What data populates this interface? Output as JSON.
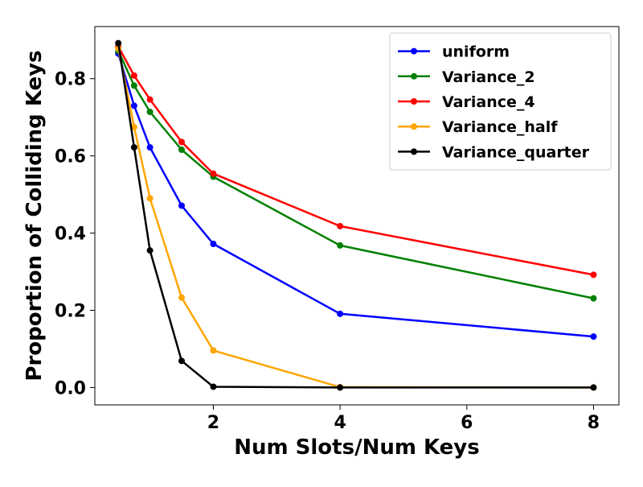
{
  "chart_data": {
    "type": "line",
    "title": "",
    "xlabel": "Num Slots/Num Keys",
    "ylabel": "Proportion of Colliding Keys",
    "xlim": [
      0.13,
      8.4
    ],
    "ylim": [
      -0.045,
      0.935
    ],
    "xticks": [
      2,
      4,
      6,
      8
    ],
    "xtick_labels": [
      "2",
      "4",
      "6",
      "8"
    ],
    "yticks": [
      0.0,
      0.2,
      0.4,
      0.6,
      0.8
    ],
    "ytick_labels": [
      "0.0",
      "0.2",
      "0.4",
      "0.6",
      "0.8"
    ],
    "grid": false,
    "legend_position": "upper right",
    "x": [
      0.5,
      0.75,
      1.0,
      1.5,
      2.0,
      4.0,
      8.0
    ],
    "series": [
      {
        "name": "uniform",
        "color": "#0000ff",
        "values": [
          0.865,
          0.73,
          0.622,
          0.471,
          0.372,
          0.191,
          0.132
        ]
      },
      {
        "name": "Variance_2",
        "color": "#008000",
        "values": [
          0.872,
          0.782,
          0.714,
          0.616,
          0.546,
          0.368,
          0.231
        ]
      },
      {
        "name": "Variance_4",
        "color": "#ff0000",
        "values": [
          0.883,
          0.808,
          0.746,
          0.636,
          0.554,
          0.418,
          0.292
        ]
      },
      {
        "name": "Variance_half",
        "color": "#ffa500",
        "values": [
          0.878,
          0.675,
          0.49,
          0.233,
          0.096,
          0.001,
          0.0
        ]
      },
      {
        "name": "Variance_quarter",
        "color": "#000000",
        "values": [
          0.892,
          0.622,
          0.355,
          0.069,
          0.002,
          0.0,
          0.0
        ]
      }
    ]
  }
}
